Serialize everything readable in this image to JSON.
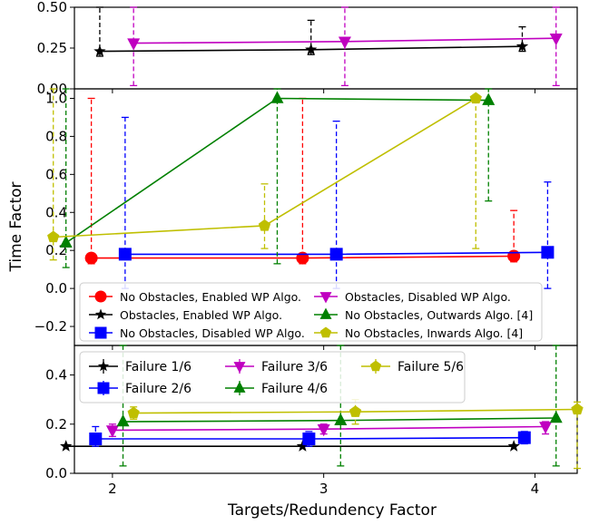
{
  "figure": {
    "xlabel": "Targets/Redundency Factor",
    "ylabel": "Time Factor"
  },
  "chart_data": [
    {
      "type": "line",
      "panel": "top",
      "x_ticks": [
        2,
        3,
        4
      ],
      "ylim": [
        0.0,
        0.5
      ],
      "y_ticks": [
        "0.00",
        "0.25",
        "0.50"
      ],
      "series": [
        {
          "key": "obs_enabled",
          "color": "#000000",
          "marker": "star",
          "x": [
            2,
            3,
            4
          ],
          "x_offset": -0.06,
          "y": [
            0.23,
            0.24,
            0.26
          ],
          "err_low": [
            0.2,
            0.21,
            0.23
          ],
          "err_high": [
            0.5,
            0.42,
            0.38
          ]
        },
        {
          "key": "obs_disabled",
          "color": "#c000c0",
          "marker": "triangle-down",
          "x": [
            2,
            3,
            4
          ],
          "x_offset": 0.1,
          "y": [
            0.28,
            0.29,
            0.31
          ],
          "err_low": [
            0.02,
            0.02,
            0.02
          ],
          "err_high": [
            0.5,
            0.5,
            0.5
          ]
        }
      ]
    },
    {
      "type": "line",
      "panel": "middle",
      "x_ticks": [
        2,
        3,
        4
      ],
      "ylim": [
        -0.3,
        1.05
      ],
      "y_ticks": [
        "−0.2",
        "0.0",
        "0.2",
        "0.4",
        "0.6",
        "0.8",
        "1.0"
      ],
      "legend": {
        "columns": 2,
        "entries": [
          {
            "label": "No Obstacles, Enabled WP Algo.",
            "color": "#ff0000",
            "marker": "circle"
          },
          {
            "label": "Obstacles, Disabled WP Algo.",
            "color": "#c000c0",
            "marker": "triangle-down"
          },
          {
            "label": "Obstacles, Enabled WP Algo.",
            "color": "#000000",
            "marker": "star"
          },
          {
            "label": "No Obstacles, Outwards Algo. [4]",
            "color": "#008000",
            "marker": "triangle-up"
          },
          {
            "label": "No Obstacles, Disabled WP Algo.",
            "color": "#0000ff",
            "marker": "square"
          },
          {
            "label": "No Obstacles, Inwards Algo. [4]",
            "color": "#bfbf00",
            "marker": "pentagon"
          }
        ]
      },
      "series": [
        {
          "key": "noobs_enabled",
          "color": "#ff0000",
          "marker": "circle",
          "x": [
            2,
            3,
            4
          ],
          "x_offset": -0.1,
          "y": [
            0.16,
            0.16,
            0.17
          ],
          "err_low": [
            0.13,
            0.13,
            0.14
          ],
          "err_high": [
            1.0,
            1.0,
            0.41
          ]
        },
        {
          "key": "noobs_disabled",
          "color": "#0000ff",
          "marker": "square",
          "x": [
            2,
            3,
            4
          ],
          "x_offset": 0.06,
          "y": [
            0.18,
            0.18,
            0.19
          ],
          "err_low": [
            0.0,
            0.0,
            0.0
          ],
          "err_high": [
            0.9,
            0.88,
            0.56
          ]
        },
        {
          "key": "noobs_outwards",
          "color": "#008000",
          "marker": "triangle-up",
          "x": [
            2,
            3,
            4
          ],
          "x_offset": -0.22,
          "y": [
            0.24,
            1.0,
            0.99
          ],
          "err_low": [
            0.11,
            0.13,
            0.46
          ],
          "err_high": [
            1.05,
            1.05,
            1.05
          ]
        },
        {
          "key": "noobs_inwards",
          "color": "#bfbf00",
          "marker": "pentagon",
          "x": [
            2,
            3,
            4
          ],
          "x_offset": -0.28,
          "y": [
            0.27,
            0.33,
            1.0
          ],
          "err_low": [
            0.15,
            0.21,
            0.21
          ],
          "err_high": [
            1.05,
            0.55,
            1.0
          ]
        }
      ]
    },
    {
      "type": "line",
      "panel": "bottom",
      "x_ticks": [
        2,
        3,
        4
      ],
      "x_tick_labels": [
        "2",
        "3",
        "4"
      ],
      "ylim": [
        0.0,
        0.52
      ],
      "y_ticks": [
        "0.0",
        "0.2",
        "0.4"
      ],
      "legend": {
        "columns": 3,
        "entries": [
          {
            "label": "Failure 1/6",
            "color": "#000000",
            "marker": "star"
          },
          {
            "label": "Failure 2/6",
            "color": "#0000ff",
            "marker": "square"
          },
          {
            "label": "Failure 3/6",
            "color": "#c000c0",
            "marker": "triangle-down"
          },
          {
            "label": "Failure 4/6",
            "color": "#008000",
            "marker": "triangle-up"
          },
          {
            "label": "Failure 5/6",
            "color": "#bfbf00",
            "marker": "pentagon"
          }
        ]
      },
      "series": [
        {
          "key": "f1",
          "color": "#000000",
          "marker": "star",
          "x": [
            1.78,
            2.9,
            3.9
          ],
          "x_offset": 0,
          "y": [
            0.11,
            0.11,
            0.11
          ],
          "err_low": [
            0.11,
            0.11,
            0.11
          ],
          "err_high": [
            0.11,
            0.11,
            0.11
          ]
        },
        {
          "key": "f2",
          "color": "#0000ff",
          "marker": "square",
          "x": [
            1.92,
            2.93,
            3.95
          ],
          "x_offset": 0,
          "y": [
            0.14,
            0.14,
            0.145
          ],
          "err_low": [
            0.11,
            0.11,
            0.12
          ],
          "err_high": [
            0.19,
            0.17,
            0.17
          ]
        },
        {
          "key": "f3",
          "color": "#c000c0",
          "marker": "triangle-down",
          "x": [
            2.0,
            3.0,
            4.05
          ],
          "x_offset": 0,
          "y": [
            0.175,
            0.18,
            0.19
          ],
          "err_low": [
            0.15,
            0.16,
            0.16
          ],
          "err_high": [
            0.2,
            0.2,
            0.21
          ]
        },
        {
          "key": "f4",
          "color": "#008000",
          "marker": "triangle-up",
          "x": [
            2.05,
            3.08,
            4.1
          ],
          "x_offset": 0,
          "y": [
            0.21,
            0.215,
            0.225
          ],
          "err_low": [
            0.03,
            0.03,
            0.03
          ],
          "err_high": [
            0.52,
            0.52,
            0.52
          ]
        },
        {
          "key": "f5",
          "color": "#bfbf00",
          "marker": "pentagon",
          "x": [
            2.1,
            3.15,
            4.2
          ],
          "x_offset": 0,
          "y": [
            0.245,
            0.25,
            0.26
          ],
          "err_low": [
            0.22,
            0.2,
            0.02
          ],
          "err_high": [
            0.27,
            0.3,
            0.29
          ]
        }
      ]
    }
  ]
}
